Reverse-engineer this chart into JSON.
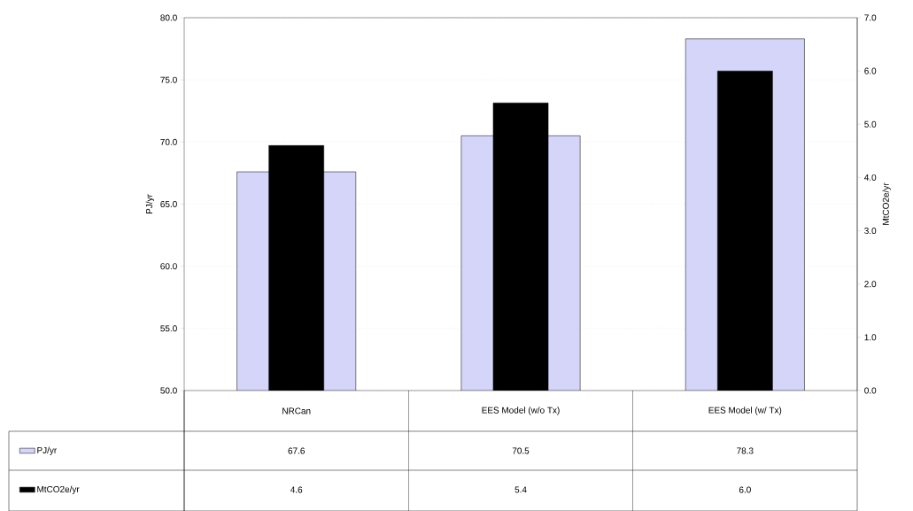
{
  "chart_data": {
    "type": "bar",
    "categories": [
      "NRCan",
      "EES Model (w/o Tx)",
      "EES Model (w/ Tx)"
    ],
    "series": [
      {
        "name": "PJ/yr",
        "color": "#d5d5fa",
        "values": [
          67.6,
          70.5,
          78.3
        ],
        "value_labels": [
          "67.6",
          "70.5",
          "78.3"
        ]
      },
      {
        "name": "MtCO2e/yr",
        "color": "#000000",
        "values": [
          4.6,
          5.4,
          6.0
        ],
        "value_labels": [
          "4.6",
          "5.4",
          "6.0"
        ],
        "axis": "y2"
      }
    ],
    "ylabel": "PJ/yr",
    "y2label": "MtCO2e/yr",
    "ylim": [
      50,
      80
    ],
    "yticks": [
      {
        "value": 50,
        "label": "50.0"
      },
      {
        "value": 55,
        "label": "55.0"
      },
      {
        "value": 60,
        "label": "60.0"
      },
      {
        "value": 65,
        "label": "65.0"
      },
      {
        "value": 70,
        "label": "70.0"
      },
      {
        "value": 75,
        "label": "75.0"
      },
      {
        "value": 80,
        "label": "80.0"
      }
    ],
    "y2lim": [
      0,
      7
    ],
    "y2ticks": [
      {
        "value": 0,
        "label": "0.0"
      },
      {
        "value": 1,
        "label": "1.0"
      },
      {
        "value": 2,
        "label": "2.0"
      },
      {
        "value": 3,
        "label": "3.0"
      },
      {
        "value": 4,
        "label": "4.0"
      },
      {
        "value": 5,
        "label": "5.0"
      },
      {
        "value": 6,
        "label": "6.0"
      },
      {
        "value": 7,
        "label": "7.0"
      }
    ],
    "grid": "y",
    "legend": "bottom"
  }
}
